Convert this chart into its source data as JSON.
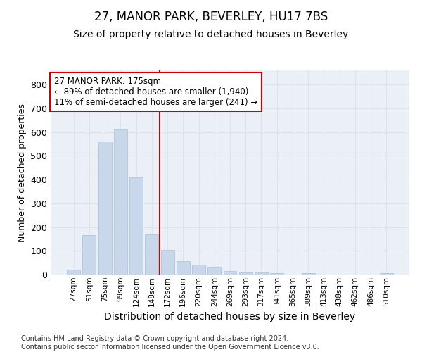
{
  "title1": "27, MANOR PARK, BEVERLEY, HU17 7BS",
  "title2": "Size of property relative to detached houses in Beverley",
  "xlabel": "Distribution of detached houses by size in Beverley",
  "ylabel": "Number of detached properties",
  "bar_color": "#c8d8ea",
  "bar_edge_color": "#a8c0d8",
  "vline_color": "#cc0000",
  "annotation_box_color": "#cc0000",
  "annotation_line1": "27 MANOR PARK: 175sqm",
  "annotation_line2": "← 89% of detached houses are smaller (1,940)",
  "annotation_line3": "11% of semi-detached houses are larger (241) →",
  "categories": [
    "27sqm",
    "51sqm",
    "75sqm",
    "99sqm",
    "124sqm",
    "148sqm",
    "172sqm",
    "196sqm",
    "220sqm",
    "244sqm",
    "269sqm",
    "293sqm",
    "317sqm",
    "341sqm",
    "365sqm",
    "389sqm",
    "413sqm",
    "438sqm",
    "462sqm",
    "486sqm",
    "510sqm"
  ],
  "values": [
    20,
    165,
    560,
    615,
    410,
    170,
    105,
    55,
    42,
    32,
    15,
    10,
    8,
    7,
    0,
    7,
    0,
    0,
    0,
    0,
    7
  ],
  "ylim": [
    0,
    860
  ],
  "yticks": [
    0,
    100,
    200,
    300,
    400,
    500,
    600,
    700,
    800
  ],
  "grid_color": "#d8e4ee",
  "bg_color": "#eaf0f6",
  "footnote": "Contains HM Land Registry data © Crown copyright and database right 2024.\nContains public sector information licensed under the Open Government Licence v3.0.",
  "title1_fontsize": 12,
  "title2_fontsize": 10,
  "annotation_fontsize": 8.5,
  "ylabel_fontsize": 9,
  "xlabel_fontsize": 10,
  "footnote_fontsize": 7,
  "vline_bin_index": 6
}
